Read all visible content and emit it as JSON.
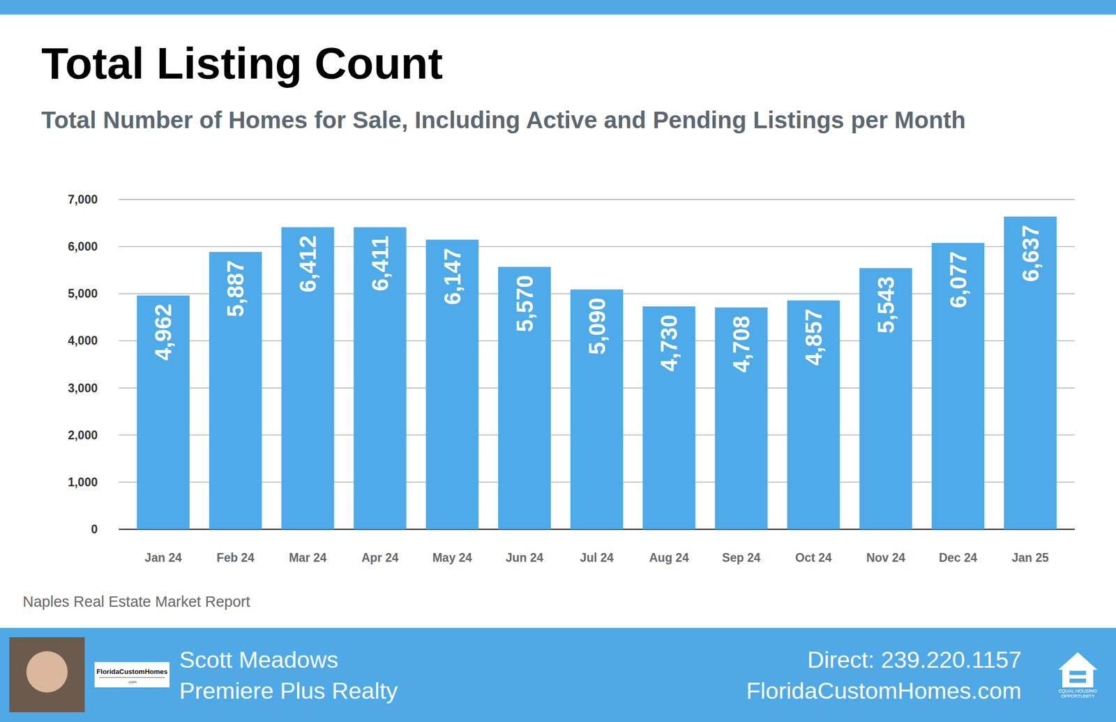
{
  "chart_data": {
    "type": "bar",
    "title": "Total Listing Count",
    "subtitle": "Total Number of Homes for Sale, Including Active and Pending Listings per Month",
    "categories": [
      "Jan 24",
      "Feb 24",
      "Mar 24",
      "Apr 24",
      "May 24",
      "Jun 24",
      "Jul 24",
      "Aug 24",
      "Sep 24",
      "Oct 24",
      "Nov 24",
      "Dec 24",
      "Jan 25"
    ],
    "values": [
      4962,
      5887,
      6412,
      6411,
      6147,
      5570,
      5090,
      4730,
      4708,
      4857,
      5543,
      6077,
      6637
    ],
    "value_labels": [
      "4,962",
      "5,887",
      "6,412",
      "6,411",
      "6,147",
      "5,570",
      "5,090",
      "4,730",
      "4,708",
      "4,857",
      "5,543",
      "6,077",
      "6,637"
    ],
    "color": "#4eaae8",
    "ylim": [
      0,
      7000
    ],
    "yticks": [
      0,
      {
        "value": 1000,
        "label": "1,000"
      },
      {
        "value": 2000,
        "label": "2,000"
      },
      {
        "value": 3000,
        "label": "3,000"
      },
      {
        "value": 4000,
        "label": "4,000"
      },
      {
        "value": 5000,
        "label": "5,000"
      },
      {
        "value": 6000,
        "label": "6,000"
      },
      {
        "value": 7000,
        "label": "7,000"
      }
    ],
    "grid": true,
    "data_labels": true
  },
  "page": {
    "source": "Naples Real Estate Market Report",
    "footer": {
      "name": "Scott Meadows",
      "company": "Premiere Plus Realty",
      "phone": "Direct: 239.220.1157",
      "website": "FloridaCustomHomes.com",
      "logo": "FloridaCustomHomes",
      "logo_sub": ".com",
      "equal_housing": [
        "EQUAL HOUSING",
        "OPPORTUNITY"
      ]
    }
  }
}
